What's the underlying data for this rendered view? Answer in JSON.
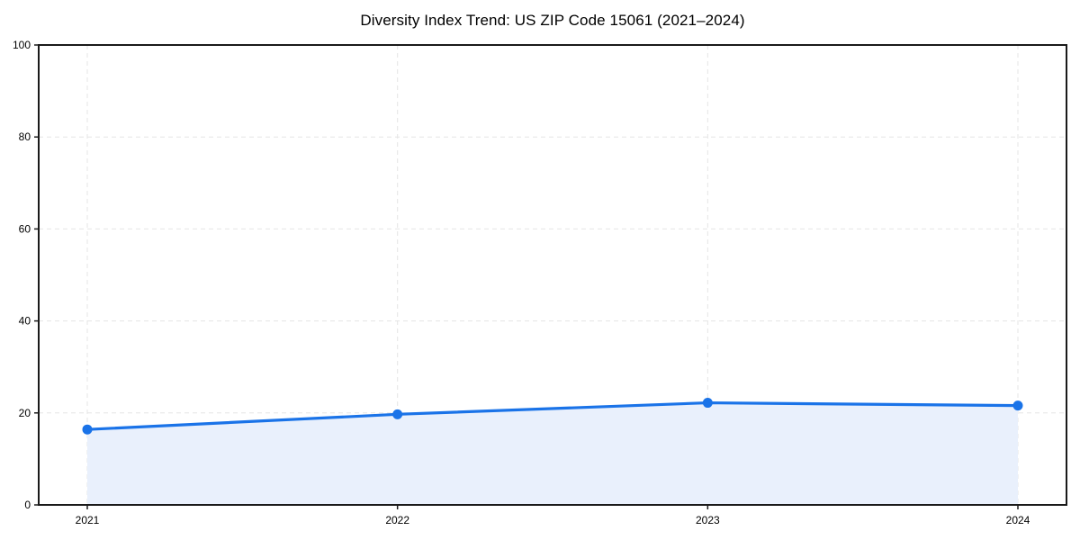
{
  "figure": {
    "background": "#ffffff"
  },
  "chart_data": {
    "type": "area",
    "title": "Diversity Index Trend: US ZIP Code 15061 (2021–2024)",
    "categories": [
      "2021",
      "2022",
      "2023",
      "2024"
    ],
    "series": [
      {
        "name": "Diversity Index",
        "values": [
          16.4,
          19.7,
          22.2,
          21.6
        ]
      }
    ],
    "xlabel": "",
    "ylabel": "",
    "ylim": [
      0,
      100
    ],
    "yticks": [
      0,
      20,
      40,
      60,
      80,
      100
    ],
    "grid": true,
    "grid_style": "dashed",
    "legend": "none",
    "colors": {
      "line": "#1a73e8",
      "marker": "#1a73e8",
      "fill": "#e9f0fc",
      "grid": "#e5e5e5",
      "axis": "#1a1a1a",
      "text": "#000000"
    }
  }
}
